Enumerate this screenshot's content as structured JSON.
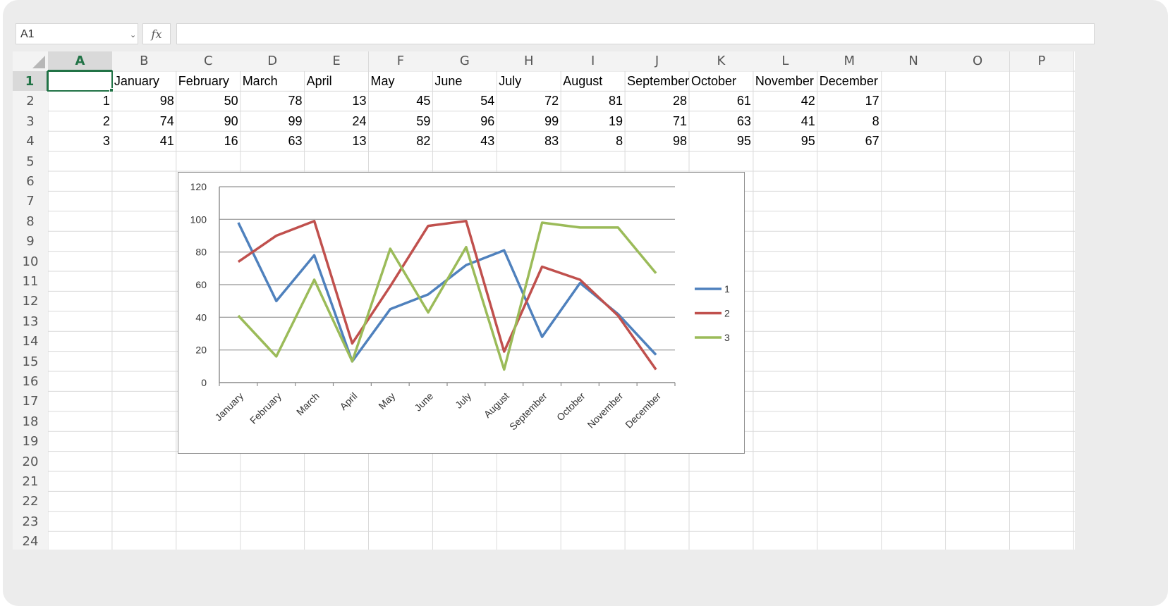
{
  "formula_bar": {
    "name_box": "A1",
    "fx_label": "fx",
    "formula": ""
  },
  "columns": [
    "A",
    "B",
    "C",
    "D",
    "E",
    "F",
    "G",
    "H",
    "I",
    "J",
    "K",
    "L",
    "M",
    "N",
    "O",
    "P"
  ],
  "rows": [
    "1",
    "2",
    "3",
    "4",
    "5",
    "6",
    "7",
    "8",
    "9",
    "10",
    "11",
    "12",
    "13",
    "14",
    "15",
    "16",
    "17",
    "18",
    "19",
    "20",
    "21",
    "22",
    "23",
    "24"
  ],
  "active_cell": "A1",
  "cells": {
    "header_row": [
      "",
      "January",
      "February",
      "March",
      "April",
      "May",
      "June",
      "July",
      "August",
      "September",
      "October",
      "November",
      "December"
    ],
    "data_rows": [
      [
        1,
        98,
        50,
        78,
        13,
        45,
        54,
        72,
        81,
        28,
        61,
        42,
        17
      ],
      [
        2,
        74,
        90,
        99,
        24,
        59,
        96,
        99,
        19,
        71,
        63,
        41,
        8
      ],
      [
        3,
        41,
        16,
        63,
        13,
        82,
        43,
        83,
        8,
        98,
        95,
        95,
        67
      ]
    ]
  },
  "chart_data": {
    "type": "line",
    "categories": [
      "January",
      "February",
      "March",
      "April",
      "May",
      "June",
      "July",
      "August",
      "September",
      "October",
      "November",
      "December"
    ],
    "series": [
      {
        "name": "1",
        "color": "#4f81bd",
        "values": [
          98,
          50,
          78,
          13,
          45,
          54,
          72,
          81,
          28,
          61,
          42,
          17
        ]
      },
      {
        "name": "2",
        "color": "#c0504d",
        "values": [
          74,
          90,
          99,
          24,
          59,
          96,
          99,
          19,
          71,
          63,
          41,
          8
        ]
      },
      {
        "name": "3",
        "color": "#9bbb59",
        "values": [
          41,
          16,
          63,
          13,
          82,
          43,
          83,
          8,
          98,
          95,
          95,
          67
        ]
      }
    ],
    "yticks": [
      0,
      20,
      40,
      60,
      80,
      100,
      120
    ],
    "ylim": [
      0,
      120
    ],
    "grid": true,
    "legend": "right",
    "title": "",
    "xlabel": "",
    "ylabel": ""
  }
}
